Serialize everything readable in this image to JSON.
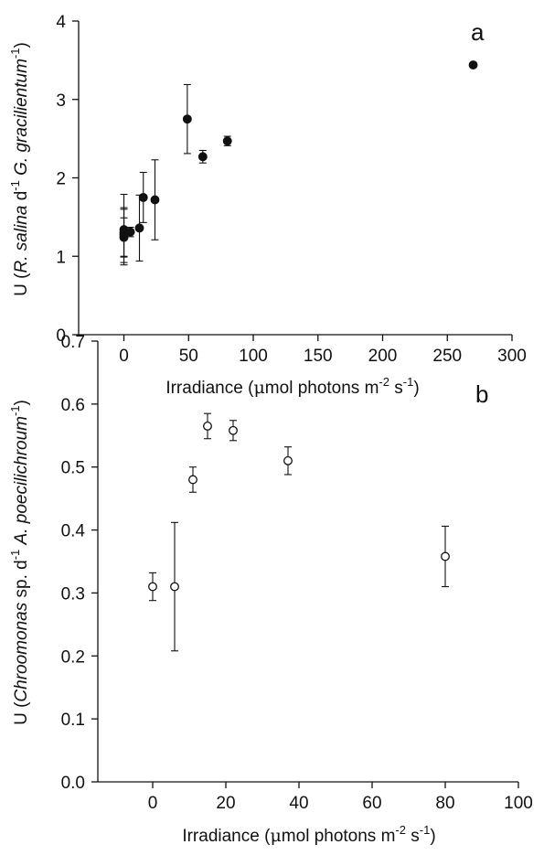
{
  "chart_data": [
    {
      "type": "scatter",
      "panel_label": "a",
      "xlabel_parts": [
        "Irradiance (",
        "μ",
        "mol photons m",
        "-2",
        " s",
        "-1",
        ")"
      ],
      "ylabel_parts": [
        "U (",
        "R. salina",
        " d",
        "-1",
        " ",
        "G. gracilientum",
        "",
        "-1",
        ")"
      ],
      "xlim": [
        -35,
        300
      ],
      "ylim": [
        0,
        4
      ],
      "xticks": [
        0,
        50,
        100,
        150,
        200,
        250,
        300
      ],
      "yticks": [
        0,
        1,
        2,
        3,
        4
      ],
      "ytick_decimals": 0,
      "marker": "filled-circle",
      "points": [
        {
          "x": 0,
          "y": 1.24,
          "err": 0.25
        },
        {
          "x": 0,
          "y": 1.27,
          "err": 0.35
        },
        {
          "x": 0,
          "y": 1.3,
          "err": 0.3
        },
        {
          "x": 0,
          "y": 1.34,
          "err": 0.45
        },
        {
          "x": 5,
          "y": 1.31,
          "err": 0.06
        },
        {
          "x": 12,
          "y": 1.36,
          "err": 0.42
        },
        {
          "x": 15,
          "y": 1.75,
          "err": 0.32
        },
        {
          "x": 24,
          "y": 1.72,
          "err": 0.51
        },
        {
          "x": 49,
          "y": 2.75,
          "err": 0.44
        },
        {
          "x": 61,
          "y": 2.27,
          "err": 0.08
        },
        {
          "x": 80,
          "y": 2.47,
          "err": 0.06
        },
        {
          "x": 270,
          "y": 3.44,
          "err": 0
        }
      ]
    },
    {
      "type": "scatter",
      "panel_label": "b",
      "xlabel_parts": [
        "Irradiance (",
        "μ",
        "mol photons m",
        "-2",
        " s",
        "-1",
        ")"
      ],
      "ylabel_parts": [
        "U (",
        "Chroomonas",
        " sp. d",
        "-1",
        " ",
        "A. poecilichroum",
        "",
        "-1",
        ")"
      ],
      "xlim": [
        -15,
        100
      ],
      "ylim": [
        0,
        0.7
      ],
      "xticks": [
        0,
        20,
        40,
        60,
        80,
        100
      ],
      "yticks": [
        0.0,
        0.1,
        0.2,
        0.3,
        0.4,
        0.5,
        0.6,
        0.7
      ],
      "ytick_decimals": 1,
      "marker": "open-circle",
      "points": [
        {
          "x": 0,
          "y": 0.31,
          "err": 0.022
        },
        {
          "x": 6,
          "y": 0.31,
          "err": 0.102
        },
        {
          "x": 11,
          "y": 0.48,
          "err": 0.02
        },
        {
          "x": 15,
          "y": 0.565,
          "err": 0.02
        },
        {
          "x": 22,
          "y": 0.558,
          "err": 0.016
        },
        {
          "x": 37,
          "y": 0.51,
          "err": 0.022
        },
        {
          "x": 80,
          "y": 0.358,
          "err": 0.048
        }
      ]
    }
  ]
}
